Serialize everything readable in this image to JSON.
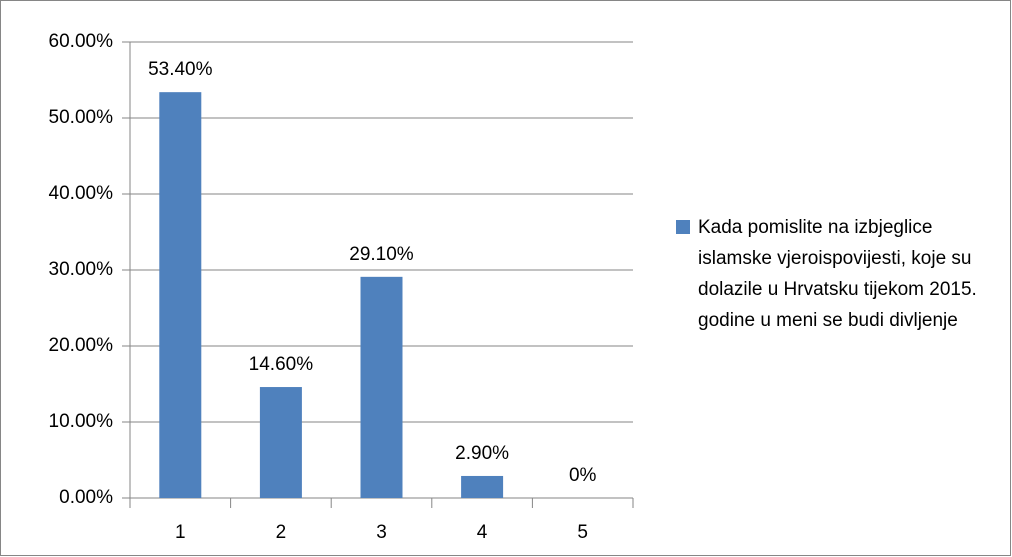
{
  "chart_data": {
    "type": "bar",
    "categories": [
      "1",
      "2",
      "3",
      "4",
      "5"
    ],
    "series": [
      {
        "name": "Kada pomislite na izbjeglice islamske vjeroispovijesti, koje su dolazile u Hrvatsku tijekom 2015. godine u meni se budi divljenje",
        "color": "#4f81bd",
        "values": [
          53.4,
          14.6,
          29.1,
          2.9,
          0
        ],
        "value_labels": [
          "53.40%",
          "14.60%",
          "29.10%",
          "2.90%",
          "0%"
        ]
      }
    ],
    "ylim": [
      0,
      60
    ],
    "yticks": [
      {
        "value": 0,
        "label": "0.00%"
      },
      {
        "value": 10,
        "label": "10.00%"
      },
      {
        "value": 20,
        "label": "20.00%"
      },
      {
        "value": 30,
        "label": "30.00%"
      },
      {
        "value": 40,
        "label": "40.00%"
      },
      {
        "value": 50,
        "label": "50.00%"
      },
      {
        "value": 60,
        "label": "60.00%"
      }
    ],
    "grid": true,
    "legend": "right"
  }
}
